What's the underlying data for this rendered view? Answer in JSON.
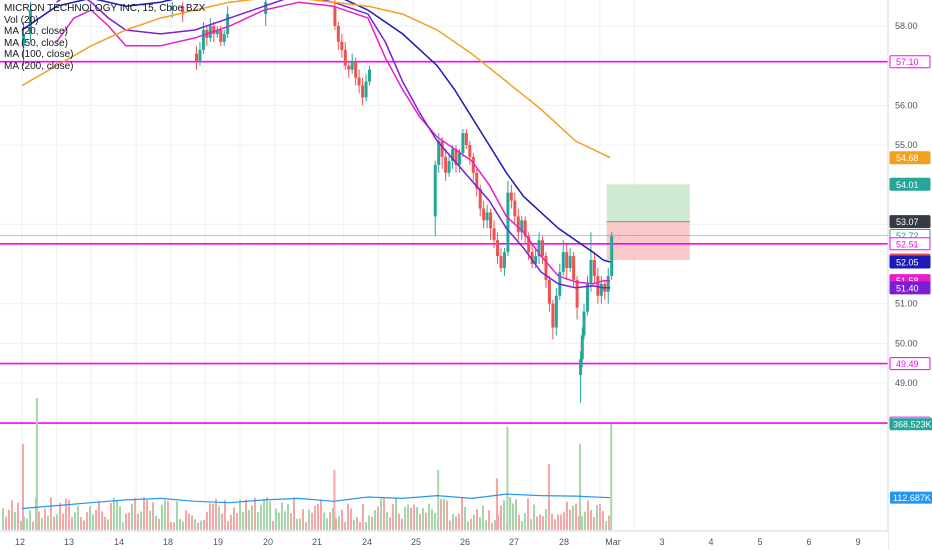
{
  "legend": {
    "title": "MICRON TECHNOLOGY INC, 15, Cboe BZX",
    "lines": [
      "Vol (20)",
      "MA (20, close)",
      "MA (50, close)",
      "MA (100, close)",
      "MA (200, close)"
    ]
  },
  "colors": {
    "up": "#26a69a",
    "down": "#ef5350",
    "upVol": "#a5d6a7",
    "downVol": "#f4a7a6",
    "ma20": "#e91ec8",
    "ma50": "#7b1fd6",
    "ma100": "#1a1ab8",
    "ma200": "#f2a020",
    "hline": "#ff00ff",
    "volMA": "#2196f3",
    "profitZone": "#c8e6c9",
    "lossZone": "#f8c0bf"
  },
  "chart_data": {
    "type": "candlestick",
    "title": "MICRON TECHNOLOGY INC, 15, Cboe BZX",
    "ylim": [
      47.0,
      58.6
    ],
    "y_ticks": [
      "58.00",
      "56.00",
      "55.00",
      "53.00",
      "51.00",
      "50.00",
      "49.00"
    ],
    "y_tick_values": [
      58,
      56,
      55,
      53,
      51,
      50,
      49
    ],
    "x_ticks": [
      "12",
      "13",
      "14",
      "18",
      "19",
      "20",
      "21",
      "24",
      "25",
      "26",
      "27",
      "28",
      "Mar",
      "3",
      "4",
      "5",
      "6",
      "9"
    ],
    "horizontal_levels": [
      57.1,
      52.51,
      49.49,
      47.99
    ],
    "series": [
      {
        "name": "MA (20, close)",
        "color_key": "ma20",
        "x": [
          13.0,
          13.5,
          14.0,
          14.5,
          15.0,
          16.0,
          17.0,
          18.0,
          19.0,
          20.0,
          21.0,
          22.0,
          22.5,
          23.0,
          23.5,
          24.0,
          24.5,
          25.0,
          25.5,
          26.0,
          26.5,
          27.0,
          27.5,
          28.0,
          28.5,
          28.8,
          29.0
        ],
        "values": [
          57.6,
          58.2,
          58.4,
          58.0,
          57.5,
          57.5,
          57.7,
          58.0,
          58.4,
          58.6,
          58.5,
          58.2,
          57.2,
          56.4,
          55.7,
          55.2,
          54.9,
          54.6,
          54.0,
          53.2,
          52.8,
          52.2,
          51.7,
          51.55,
          51.5,
          51.58,
          51.58
        ]
      },
      {
        "name": "MA (50, close)",
        "color_key": "ma50",
        "x": [
          13.0,
          13.5,
          14.0,
          14.5,
          15.0,
          16.0,
          17.0,
          18.0,
          19.0,
          20.0,
          21.0,
          22.0,
          22.5,
          23.0,
          23.5,
          24.0,
          24.5,
          25.0,
          25.5,
          26.0,
          26.5,
          27.0,
          27.5,
          28.0,
          28.5,
          28.8,
          29.0
        ],
        "values": [
          58.6,
          58.9,
          58.6,
          58.2,
          57.9,
          57.8,
          57.9,
          58.2,
          58.5,
          58.8,
          58.6,
          58.3,
          57.6,
          56.6,
          55.8,
          55.1,
          54.6,
          54.1,
          53.6,
          52.9,
          52.4,
          51.8,
          51.5,
          51.4,
          51.45,
          51.4,
          51.4
        ]
      },
      {
        "name": "MA (100, close)",
        "color_key": "ma100",
        "x": [
          12.0,
          13.0,
          14.0,
          15.0,
          16.0,
          17.0,
          18.0,
          19.0,
          20.0,
          21.0,
          22.0,
          23.0,
          24.0,
          24.5,
          25.0,
          25.5,
          26.0,
          26.5,
          27.0,
          27.5,
          28.0,
          28.5,
          28.8,
          29.0
        ],
        "values": [
          57.9,
          58.5,
          58.7,
          58.5,
          58.6,
          58.8,
          58.9,
          59.0,
          59.0,
          58.8,
          58.4,
          57.8,
          57.0,
          56.4,
          55.7,
          55.0,
          54.3,
          53.7,
          53.3,
          52.9,
          52.6,
          52.3,
          52.1,
          52.05
        ]
      },
      {
        "name": "MA (200, close)",
        "color_key": "ma200",
        "x": [
          12.0,
          13.0,
          14.0,
          15.0,
          16.0,
          17.0,
          18.0,
          19.0,
          20.0,
          21.0,
          22.0,
          23.0,
          24.0,
          25.0,
          26.0,
          27.0,
          28.0,
          29.0
        ],
        "values": [
          56.5,
          57.0,
          57.5,
          57.9,
          58.2,
          58.4,
          58.6,
          58.7,
          58.7,
          58.6,
          58.5,
          58.3,
          57.9,
          57.3,
          56.6,
          55.9,
          55.1,
          54.68
        ]
      }
    ],
    "price_badges": [
      {
        "label": "57.10",
        "value": 57.1,
        "color_key": "hline",
        "style": "outline"
      },
      {
        "label": "54.68",
        "value": 54.68,
        "color_key": "ma200",
        "style": "fill"
      },
      {
        "label": "54.01",
        "value": 54.01,
        "color_key": "up",
        "style": "fill"
      },
      {
        "label": "53.07",
        "value": 53.07,
        "color_key": "dark",
        "style": "fill"
      },
      {
        "label": "52.72",
        "value": 52.72,
        "color_key": "up",
        "style": "outline"
      },
      {
        "label": "52.51",
        "value": 52.51,
        "color_key": "hline",
        "style": "outline"
      },
      {
        "label": "52.10",
        "value": 52.1,
        "color_key": "down",
        "style": "fill"
      },
      {
        "label": "52.05",
        "value": 52.05,
        "color_key": "ma100",
        "style": "fill"
      },
      {
        "label": "51.58",
        "value": 51.58,
        "color_key": "ma20",
        "style": "fill"
      },
      {
        "label": "51.40",
        "value": 51.4,
        "color_key": "ma50",
        "style": "fill"
      },
      {
        "label": "49.49",
        "value": 49.49,
        "color_key": "hline",
        "style": "outline"
      },
      {
        "label": "47.99",
        "value": 47.99,
        "color_key": "hline",
        "style": "outline"
      }
    ],
    "volume_badges": [
      {
        "label": "368.523K",
        "color_key": "up"
      },
      {
        "label": "112.687K",
        "color_key": "volMA"
      }
    ],
    "position_tool": {
      "entry": 53.07,
      "target": 54.01,
      "stop": 52.1,
      "x_start": 28.9,
      "x_end": 31.3
    },
    "candles": [
      {
        "x": 12.0,
        "o": 57.5,
        "c": 57.8,
        "h": 58.1,
        "l": 57.0
      },
      {
        "x": 12.2,
        "o": 57.8,
        "c": 58.4,
        "h": 58.6,
        "l": 57.6
      },
      {
        "x": 17.0,
        "o": 57.3,
        "c": 57.1,
        "h": 57.5,
        "l": 56.9
      },
      {
        "x": 17.1,
        "o": 57.1,
        "c": 57.4,
        "h": 57.6,
        "l": 57.0
      },
      {
        "x": 17.2,
        "o": 57.4,
        "c": 57.9,
        "h": 58.1,
        "l": 57.3
      },
      {
        "x": 17.3,
        "o": 57.9,
        "c": 57.7,
        "h": 58.0,
        "l": 57.5
      },
      {
        "x": 17.4,
        "o": 57.7,
        "c": 58.0,
        "h": 58.2,
        "l": 57.6
      },
      {
        "x": 17.5,
        "o": 58.0,
        "c": 57.8,
        "h": 58.1,
        "l": 57.6
      },
      {
        "x": 17.6,
        "o": 57.8,
        "c": 57.9,
        "h": 58.0,
        "l": 57.7
      },
      {
        "x": 17.7,
        "o": 57.9,
        "c": 57.6,
        "h": 58.0,
        "l": 57.5
      },
      {
        "x": 17.8,
        "o": 57.6,
        "c": 57.8,
        "h": 57.9,
        "l": 57.5
      },
      {
        "x": 17.9,
        "o": 57.8,
        "c": 58.3,
        "h": 58.5,
        "l": 57.7
      },
      {
        "x": 16.3,
        "o": 58.4,
        "c": 58.5,
        "h": 58.6,
        "l": 58.2
      },
      {
        "x": 16.6,
        "o": 58.5,
        "c": 58.3,
        "h": 58.6,
        "l": 58.1
      },
      {
        "x": 19.0,
        "o": 58.3,
        "c": 58.6,
        "h": 58.7,
        "l": 58.0
      },
      {
        "x": 21.0,
        "o": 58.5,
        "c": 58.0,
        "h": 58.7,
        "l": 57.9
      },
      {
        "x": 21.1,
        "o": 58.0,
        "c": 57.6,
        "h": 58.1,
        "l": 57.4
      },
      {
        "x": 21.2,
        "o": 57.6,
        "c": 57.4,
        "h": 57.8,
        "l": 57.2
      },
      {
        "x": 21.3,
        "o": 57.4,
        "c": 57.0,
        "h": 57.6,
        "l": 56.9
      },
      {
        "x": 21.4,
        "o": 57.0,
        "c": 56.9,
        "h": 57.1,
        "l": 56.7
      },
      {
        "x": 21.5,
        "o": 56.9,
        "c": 57.1,
        "h": 57.3,
        "l": 56.8
      },
      {
        "x": 21.6,
        "o": 57.1,
        "c": 56.7,
        "h": 57.2,
        "l": 56.5
      },
      {
        "x": 21.7,
        "o": 56.7,
        "c": 56.5,
        "h": 56.9,
        "l": 56.3
      },
      {
        "x": 21.8,
        "o": 56.5,
        "c": 56.2,
        "h": 56.7,
        "l": 56.0
      },
      {
        "x": 21.9,
        "o": 56.2,
        "c": 56.6,
        "h": 56.8,
        "l": 56.1
      },
      {
        "x": 22.0,
        "o": 56.6,
        "c": 56.9,
        "h": 57.0,
        "l": 56.5
      },
      {
        "x": 23.9,
        "o": 53.2,
        "c": 54.5,
        "h": 54.6,
        "l": 52.7
      },
      {
        "x": 24.0,
        "o": 54.5,
        "c": 55.1,
        "h": 55.3,
        "l": 54.3
      },
      {
        "x": 24.1,
        "o": 55.1,
        "c": 54.7,
        "h": 55.2,
        "l": 54.4
      },
      {
        "x": 24.2,
        "o": 54.7,
        "c": 54.3,
        "h": 54.9,
        "l": 54.1
      },
      {
        "x": 24.3,
        "o": 54.3,
        "c": 54.6,
        "h": 54.8,
        "l": 54.2
      },
      {
        "x": 24.4,
        "o": 54.6,
        "c": 54.9,
        "h": 55.0,
        "l": 54.4
      },
      {
        "x": 24.5,
        "o": 54.9,
        "c": 54.5,
        "h": 55.0,
        "l": 54.3
      },
      {
        "x": 24.6,
        "o": 54.5,
        "c": 54.8,
        "h": 54.9,
        "l": 54.3
      },
      {
        "x": 24.7,
        "o": 54.8,
        "c": 55.3,
        "h": 55.4,
        "l": 54.7
      },
      {
        "x": 24.8,
        "o": 55.3,
        "c": 55.0,
        "h": 55.4,
        "l": 54.9
      },
      {
        "x": 24.9,
        "o": 55.0,
        "c": 54.7,
        "h": 55.1,
        "l": 54.5
      },
      {
        "x": 25.0,
        "o": 54.7,
        "c": 54.3,
        "h": 54.8,
        "l": 54.1
      },
      {
        "x": 25.1,
        "o": 54.3,
        "c": 53.9,
        "h": 54.4,
        "l": 53.7
      },
      {
        "x": 25.2,
        "o": 53.9,
        "c": 53.4,
        "h": 54.0,
        "l": 53.2
      },
      {
        "x": 25.3,
        "o": 53.4,
        "c": 53.1,
        "h": 53.6,
        "l": 52.9
      },
      {
        "x": 25.4,
        "o": 53.1,
        "c": 53.3,
        "h": 53.5,
        "l": 52.9
      },
      {
        "x": 25.5,
        "o": 53.3,
        "c": 52.9,
        "h": 53.4,
        "l": 52.6
      },
      {
        "x": 25.6,
        "o": 52.9,
        "c": 52.6,
        "h": 53.1,
        "l": 52.4
      },
      {
        "x": 25.7,
        "o": 52.6,
        "c": 52.2,
        "h": 52.8,
        "l": 52.0
      },
      {
        "x": 25.8,
        "o": 52.2,
        "c": 51.9,
        "h": 52.4,
        "l": 51.8
      },
      {
        "x": 25.9,
        "o": 51.9,
        "c": 52.3,
        "h": 52.4,
        "l": 51.7
      },
      {
        "x": 26.0,
        "o": 52.3,
        "c": 53.8,
        "h": 54.1,
        "l": 52.2
      },
      {
        "x": 26.1,
        "o": 53.8,
        "c": 53.6,
        "h": 54.0,
        "l": 53.4
      },
      {
        "x": 26.2,
        "o": 53.6,
        "c": 53.2,
        "h": 53.8,
        "l": 53.0
      },
      {
        "x": 26.3,
        "o": 53.2,
        "c": 52.8,
        "h": 53.4,
        "l": 52.6
      },
      {
        "x": 26.4,
        "o": 52.8,
        "c": 53.1,
        "h": 53.2,
        "l": 52.6
      },
      {
        "x": 26.5,
        "o": 53.1,
        "c": 52.7,
        "h": 53.2,
        "l": 52.5
      },
      {
        "x": 26.6,
        "o": 52.7,
        "c": 52.3,
        "h": 52.8,
        "l": 52.1
      },
      {
        "x": 26.7,
        "o": 52.3,
        "c": 52.0,
        "h": 52.5,
        "l": 51.9
      },
      {
        "x": 26.8,
        "o": 52.0,
        "c": 52.2,
        "h": 52.4,
        "l": 51.9
      },
      {
        "x": 26.9,
        "o": 52.2,
        "c": 52.6,
        "h": 52.8,
        "l": 52.0
      },
      {
        "x": 27.0,
        "o": 52.6,
        "c": 52.2,
        "h": 52.7,
        "l": 52.0
      },
      {
        "x": 27.1,
        "o": 52.2,
        "c": 51.6,
        "h": 52.3,
        "l": 51.4
      },
      {
        "x": 27.2,
        "o": 51.6,
        "c": 51.0,
        "h": 51.7,
        "l": 50.8
      },
      {
        "x": 27.3,
        "o": 51.0,
        "c": 50.4,
        "h": 51.1,
        "l": 50.1
      },
      {
        "x": 27.4,
        "o": 50.4,
        "c": 51.2,
        "h": 51.4,
        "l": 50.2
      },
      {
        "x": 27.5,
        "o": 51.2,
        "c": 51.8,
        "h": 52.0,
        "l": 51.1
      },
      {
        "x": 27.6,
        "o": 51.8,
        "c": 52.3,
        "h": 52.6,
        "l": 51.7
      },
      {
        "x": 27.7,
        "o": 52.3,
        "c": 51.9,
        "h": 52.5,
        "l": 51.6
      },
      {
        "x": 27.8,
        "o": 51.9,
        "c": 52.2,
        "h": 52.4,
        "l": 51.8
      },
      {
        "x": 27.9,
        "o": 52.2,
        "c": 51.6,
        "h": 52.3,
        "l": 51.4
      },
      {
        "x": 28.0,
        "o": 51.6,
        "c": 50.9,
        "h": 51.7,
        "l": 50.6
      },
      {
        "x": 28.1,
        "o": 49.2,
        "c": 49.6,
        "h": 49.8,
        "l": 48.5
      },
      {
        "x": 28.15,
        "o": 49.6,
        "c": 50.2,
        "h": 50.4,
        "l": 49.4
      },
      {
        "x": 28.2,
        "o": 50.2,
        "c": 50.8,
        "h": 51.0,
        "l": 50.1
      },
      {
        "x": 28.3,
        "o": 50.8,
        "c": 51.5,
        "h": 51.7,
        "l": 50.7
      },
      {
        "x": 28.4,
        "o": 51.5,
        "c": 52.1,
        "h": 52.8,
        "l": 51.3
      },
      {
        "x": 28.5,
        "o": 52.1,
        "c": 51.7,
        "h": 52.3,
        "l": 51.5
      },
      {
        "x": 28.6,
        "o": 51.7,
        "c": 51.2,
        "h": 51.9,
        "l": 51.0
      },
      {
        "x": 28.7,
        "o": 51.2,
        "c": 51.5,
        "h": 51.7,
        "l": 51.0
      },
      {
        "x": 28.8,
        "o": 51.5,
        "c": 51.3,
        "h": 51.6,
        "l": 51.1
      },
      {
        "x": 28.9,
        "o": 51.3,
        "c": 51.7,
        "h": 51.9,
        "l": 51.0
      },
      {
        "x": 29.0,
        "o": 51.7,
        "c": 52.7,
        "h": 52.8,
        "l": 51.6
      }
    ],
    "volume_ma": [
      {
        "x": 12.0,
        "v": 75
      },
      {
        "x": 13.0,
        "v": 85
      },
      {
        "x": 14.0,
        "v": 95
      },
      {
        "x": 15.0,
        "v": 105
      },
      {
        "x": 16.0,
        "v": 110
      },
      {
        "x": 17.0,
        "v": 100
      },
      {
        "x": 18.0,
        "v": 95
      },
      {
        "x": 19.0,
        "v": 105
      },
      {
        "x": 20.0,
        "v": 110
      },
      {
        "x": 21.0,
        "v": 100
      },
      {
        "x": 22.0,
        "v": 115
      },
      {
        "x": 23.0,
        "v": 110
      },
      {
        "x": 24.0,
        "v": 120
      },
      {
        "x": 25.0,
        "v": 110
      },
      {
        "x": 26.0,
        "v": 125
      },
      {
        "x": 27.0,
        "v": 120
      },
      {
        "x": 28.0,
        "v": 118
      },
      {
        "x": 29.0,
        "v": 112.687
      }
    ],
    "volume_spikes": [
      {
        "x": 12.4,
        "v": 460,
        "up": true
      },
      {
        "x": 12.0,
        "v": 300,
        "up": false
      },
      {
        "x": 24.0,
        "v": 210,
        "up": true
      },
      {
        "x": 26.0,
        "v": 360,
        "up": true
      },
      {
        "x": 28.1,
        "v": 300,
        "up": true
      },
      {
        "x": 29.0,
        "v": 368.523,
        "up": true
      },
      {
        "x": 21.0,
        "v": 210,
        "up": false
      },
      {
        "x": 27.2,
        "v": 230,
        "up": false
      },
      {
        "x": 25.7,
        "v": 180,
        "up": false
      }
    ]
  }
}
